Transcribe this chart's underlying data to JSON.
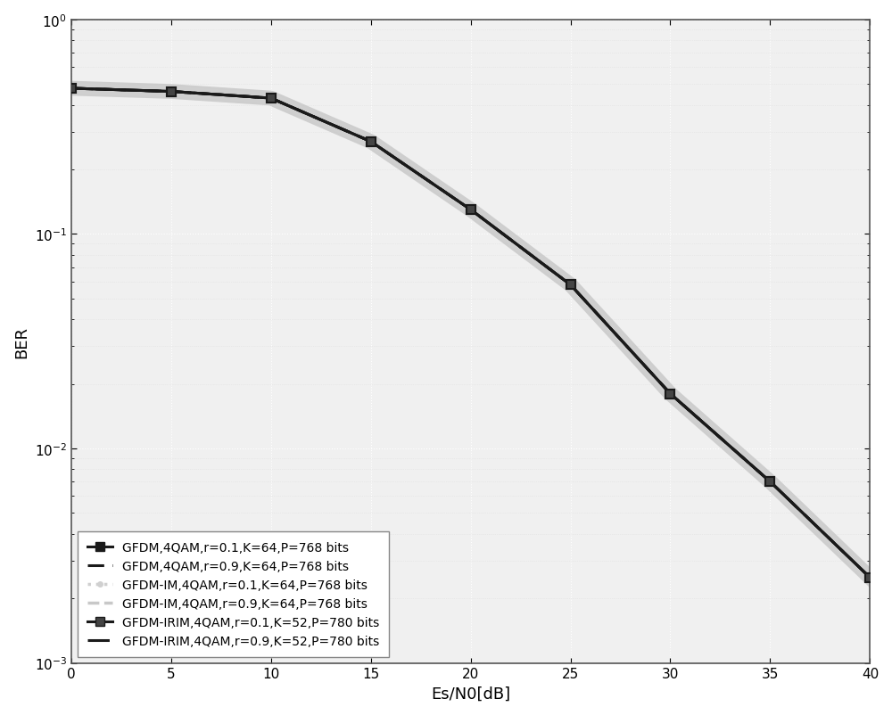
{
  "x": [
    0,
    5,
    10,
    15,
    20,
    25,
    30,
    35,
    40
  ],
  "gfdm_r01": [
    0.478,
    0.462,
    0.43,
    0.27,
    0.13,
    0.058,
    0.018,
    0.007,
    0.0025
  ],
  "gfdm_r09": [
    0.478,
    0.462,
    0.43,
    0.27,
    0.13,
    0.058,
    0.018,
    0.007,
    0.0025
  ],
  "gfdm_im_r01": [
    0.478,
    0.462,
    0.43,
    0.27,
    0.13,
    0.058,
    0.018,
    0.007,
    0.0025
  ],
  "gfdm_im_r09": [
    0.478,
    0.462,
    0.43,
    0.27,
    0.13,
    0.058,
    0.018,
    0.007,
    0.0025
  ],
  "gfdm_irim_r01": [
    0.478,
    0.462,
    0.43,
    0.27,
    0.13,
    0.058,
    0.018,
    0.007,
    0.0025
  ],
  "gfdm_irim_r09": [
    0.478,
    0.462,
    0.43,
    0.27,
    0.13,
    0.058,
    0.018,
    0.007,
    0.0025
  ],
  "xlabel": "Es/N0[dB]",
  "ylabel": "BER",
  "xlim": [
    0,
    40
  ],
  "ylim": [
    0.001,
    1.0
  ],
  "xticks": [
    0,
    5,
    10,
    15,
    20,
    25,
    30,
    35,
    40
  ],
  "legend": [
    "GFDM,4QAM,r=0.1,K=64,P=768 bits",
    "GFDM,4QAM,r=0.9,K=64,P=768 bits",
    "GFDM-IM,4QAM,r=0.1,K=64,P=768 bits",
    "GFDM-IM,4QAM,r=0.9,K=64,P=768 bits",
    "GFDM-IRIM,4QAM,r=0.1,K=52,P=780 bits",
    "GFDM-IRIM,4QAM,r=0.9,K=52,P=780 bits"
  ],
  "color_dark": "#1a1a1a",
  "color_light_dot": "#d0d0d0",
  "color_light_dash": "#c8c8c8",
  "facecolor": "#f0f0f0",
  "grid_color": "#ffffff",
  "grid_color_minor": "#e0e0e0"
}
